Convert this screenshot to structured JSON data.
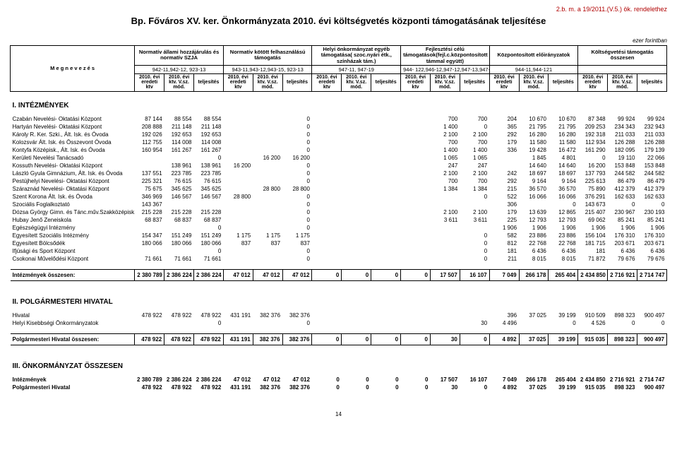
{
  "doc_ref": "2.b. m. a 19/2011.(V.5.) ök. rendelethez",
  "title": "Bp. Főváros XV. ker. Önkormányzata 2010. évi költségvetés központi támogatásának teljesítése",
  "unit_note": "ezer forintban",
  "page_number": "14",
  "row_label_header": "M e g n e v e z é s",
  "groups": [
    {
      "title": "Normatív állami hozzájárulás és normatív SZJA",
      "code": "942-11,942-12, 923-13"
    },
    {
      "title": "Normatív kötött felhasználású támogatás",
      "code": "943-11,943-12,943-15, 923-13"
    },
    {
      "title": "Helyi önkormányzat egyéb támogatása( szoc.nyári étk., színházak tám.)",
      "code": "947-11, 947-19"
    },
    {
      "title": "Fejlesztési célú támogatások(fejl.c.központosított támmal együtt)",
      "code": "944- 122,946-12,947-12,947-13,947-19"
    },
    {
      "title": "Központosított előirányzatok",
      "code": "944-11,944-121"
    },
    {
      "title": "Költségvetési támogatás összesen",
      "code": ""
    }
  ],
  "sub_headers_std": [
    "2010. évi eredeti ktv",
    "2010. évi ktv. V.sz. mód.",
    "teljesítés"
  ],
  "sub_headers_last": [
    "2010. évi eredeti ktv",
    "2010. évi ktv. V.sz. mód.",
    "teljesítés"
  ],
  "sections": [
    {
      "title": "I. INTÉZMÉNYEK",
      "rows": [
        {
          "label": "Czabán Nevelési- Oktatási Központ",
          "v": [
            "87 144",
            "88 554",
            "88 554",
            "",
            "",
            "0",
            "",
            "",
            "",
            "",
            "700",
            "700",
            "204",
            "10 670",
            "10 670",
            "87 348",
            "99 924",
            "99 924"
          ]
        },
        {
          "label": "Hartyán Nevelési- Oktatási Központ",
          "v": [
            "208 888",
            "211 148",
            "211 148",
            "",
            "",
            "0",
            "",
            "",
            "",
            "",
            "1 400",
            "0",
            "365",
            "21 795",
            "21 795",
            "209 253",
            "234 343",
            "232 943"
          ]
        },
        {
          "label": "Károly R. Ker. Szki., Ált. Isk. és Óvoda",
          "v": [
            "192 026",
            "192 653",
            "192 653",
            "",
            "",
            "0",
            "",
            "",
            "",
            "",
            "2 100",
            "2 100",
            "292",
            "16 280",
            "16 280",
            "192 318",
            "211 033",
            "211 033"
          ]
        },
        {
          "label": "Kolozsvár Ált. Isk. és Összevont Óvoda",
          "v": [
            "112 755",
            "114 008",
            "114 008",
            "",
            "",
            "0",
            "",
            "",
            "",
            "",
            "700",
            "700",
            "179",
            "11 580",
            "11 580",
            "112 934",
            "126 288",
            "126 288"
          ]
        },
        {
          "label": "Kontyfa Középisk., Ált. Isk. és Óvoda",
          "v": [
            "160 954",
            "161 267",
            "161 267",
            "",
            "",
            "0",
            "",
            "",
            "",
            "",
            "1 400",
            "1 400",
            "336",
            "19 428",
            "16 472",
            "161 290",
            "182 095",
            "179 139"
          ]
        },
        {
          "label": "Kerületi Nevelési Tanácsadó",
          "v": [
            "",
            "",
            "0",
            "",
            "16 200",
            "16 200",
            "",
            "",
            "",
            "",
            "1 065",
            "1 065",
            "",
            "1 845",
            "4 801",
            "0",
            "19 110",
            "22 066"
          ]
        },
        {
          "label": "Kossuth Nevelési- Oktatási Központ",
          "v": [
            "",
            "138 961",
            "138 961",
            "16 200",
            "",
            "0",
            "",
            "",
            "",
            "",
            "247",
            "247",
            "",
            "14 640",
            "14 640",
            "16 200",
            "153 848",
            "153 848"
          ]
        },
        {
          "label": "László Gyula Gimnázium, Ált. Isk. és Óvoda",
          "v": [
            "137 551",
            "223 785",
            "223 785",
            "",
            "",
            "0",
            "",
            "",
            "",
            "",
            "2 100",
            "2 100",
            "242",
            "18 697",
            "18 697",
            "137 793",
            "244 582",
            "244 582"
          ]
        },
        {
          "label": "Pestújhelyi Nevelési- Oktatási Központ",
          "v": [
            "225 321",
            "76 615",
            "76 615",
            "",
            "",
            "0",
            "",
            "",
            "",
            "",
            "700",
            "700",
            "292",
            "9 164",
            "9 164",
            "225 613",
            "86 479",
            "86 479"
          ]
        },
        {
          "label": "Száraznád Nevelési- Oktatási Központ",
          "v": [
            "75 675",
            "345 625",
            "345 625",
            "",
            "28 800",
            "28 800",
            "",
            "",
            "",
            "",
            "1 384",
            "1 384",
            "215",
            "36 570",
            "36 570",
            "75 890",
            "412 379",
            "412 379"
          ]
        },
        {
          "label": "Szent Korona Ált. Isk. és Óvoda",
          "v": [
            "346 969",
            "146 567",
            "146 567",
            "28 800",
            "",
            "0",
            "",
            "",
            "",
            "",
            "",
            "0",
            "522",
            "16 066",
            "16 066",
            "376 291",
            "162 633",
            "162 633"
          ]
        },
        {
          "label": "Szociális Foglalkoztató",
          "v": [
            "143 367",
            "",
            "",
            "",
            "",
            "0",
            "",
            "",
            "",
            "",
            "",
            "",
            "306",
            "",
            "0",
            "143 673",
            "0",
            "0"
          ]
        },
        {
          "label": "Dózsa György Gimn. és Tánc.műv.Szakközépisk.",
          "v": [
            "215 228",
            "215 228",
            "215 228",
            "",
            "",
            "0",
            "",
            "",
            "",
            "",
            "2 100",
            "2 100",
            "179",
            "13 639",
            "12 865",
            "215 407",
            "230 967",
            "230 193"
          ]
        },
        {
          "label": "Hubay Jenő Zeneiskola",
          "v": [
            "68 837",
            "68 837",
            "68 837",
            "",
            "",
            "0",
            "",
            "",
            "",
            "",
            "3 611",
            "3 611",
            "225",
            "12 793",
            "12 793",
            "69 062",
            "85 241",
            "85 241"
          ]
        },
        {
          "label": "Egészségügyi Intézmény",
          "v": [
            "",
            "",
            "0",
            "",
            "",
            "0",
            "",
            "",
            "",
            "",
            "",
            "",
            "1 906",
            "1 906",
            "1 906",
            "1 906",
            "1 906",
            "1 906"
          ]
        },
        {
          "label": "Egyesített Szociális Intézmény",
          "v": [
            "154 347",
            "151 249",
            "151 249",
            "1 175",
            "1 175",
            "1 175",
            "",
            "",
            "",
            "",
            "",
            "0",
            "582",
            "23 886",
            "23 886",
            "156 104",
            "176 310",
            "176 310"
          ]
        },
        {
          "label": "Egyesített Bölcsődék",
          "v": [
            "180 066",
            "180 066",
            "180 066",
            "837",
            "837",
            "837",
            "",
            "",
            "",
            "",
            "",
            "0",
            "812",
            "22 768",
            "22 768",
            "181 715",
            "203 671",
            "203 671"
          ]
        },
        {
          "label": "Ifjúsági és Sport Központ",
          "v": [
            "",
            "",
            "0",
            "",
            "",
            "0",
            "",
            "",
            "",
            "",
            "",
            "0",
            "181",
            "6 436",
            "6 436",
            "181",
            "6 436",
            "6 436"
          ]
        },
        {
          "label": "Csokonai Művelődési Központ",
          "v": [
            "71 661",
            "71 661",
            "71 661",
            "",
            "",
            "0",
            "",
            "",
            "",
            "",
            "",
            "0",
            "211",
            "8 015",
            "8 015",
            "71 872",
            "79 676",
            "79 676"
          ]
        }
      ],
      "sum": {
        "label": "Intézmények összesen:",
        "v": [
          "2 380 789",
          "2 386 224",
          "2 386 224",
          "47 012",
          "47 012",
          "47 012",
          "0",
          "0",
          "0",
          "0",
          "17 507",
          "16 107",
          "7 049",
          "266 178",
          "265 404",
          "2 434 850",
          "2 716 921",
          "2 714 747"
        ]
      }
    },
    {
      "title": "II. POLGÁRMESTERI HIVATAL",
      "rows": [
        {
          "label": "Hivatal",
          "v": [
            "478 922",
            "478 922",
            "478 922",
            "431 191",
            "382 376",
            "382 376",
            "",
            "",
            "",
            "",
            "",
            "",
            "396",
            "37 025",
            "39 199",
            "910 509",
            "898 323",
            "900 497"
          ]
        },
        {
          "label": "Helyi Kisebbségi Önkormányzatok",
          "v": [
            "",
            "",
            "0",
            "",
            "",
            "0",
            "",
            "",
            "",
            "",
            "",
            "30",
            "4 496",
            "",
            "0",
            "4 526",
            "0",
            "0"
          ]
        }
      ],
      "sum": {
        "label": "Polgármesteri Hivatal összesen:",
        "v": [
          "478 922",
          "478 922",
          "478 922",
          "431 191",
          "382 376",
          "382 376",
          "0",
          "0",
          "0",
          "0",
          "30",
          "0",
          "4 892",
          "37 025",
          "39 199",
          "915 035",
          "898 323",
          "900 497"
        ]
      }
    },
    {
      "title": "III. ÖNKORMÁNYZAT ÖSSZESEN",
      "rows": [
        {
          "label": "Intézmények",
          "bold": true,
          "v": [
            "2 380 789",
            "2 386 224",
            "2 386 224",
            "47 012",
            "47 012",
            "47 012",
            "0",
            "0",
            "0",
            "0",
            "17 507",
            "16 107",
            "7 049",
            "266 178",
            "265 404",
            "2 434 850",
            "2 716 921",
            "2 714 747"
          ]
        },
        {
          "label": "Polgármesteri Hivatal",
          "bold": true,
          "v": [
            "478 922",
            "478 922",
            "478 922",
            "431 191",
            "382 376",
            "382 376",
            "0",
            "0",
            "0",
            "0",
            "30",
            "0",
            "4 892",
            "37 025",
            "39 199",
            "915 035",
            "898 323",
            "900 497"
          ]
        }
      ]
    }
  ]
}
